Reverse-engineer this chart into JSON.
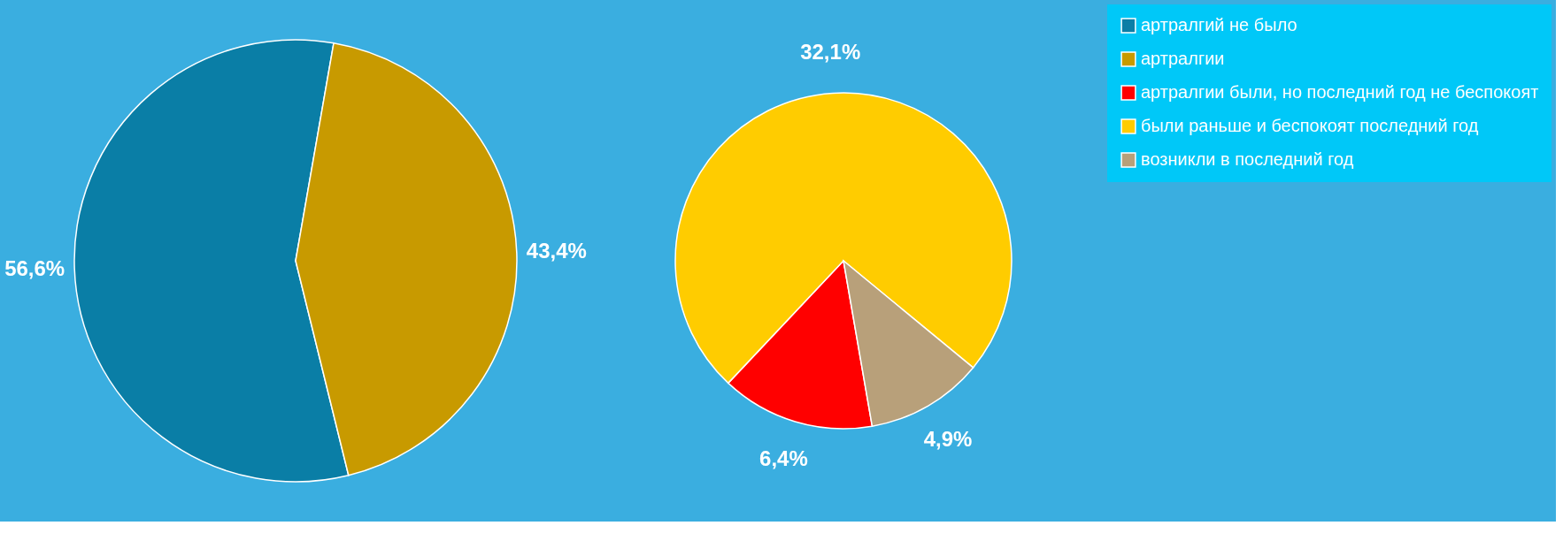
{
  "chart_data": [
    {
      "type": "pie",
      "categories": [
        "артралгий не было",
        "артралгии"
      ],
      "values": [
        56.6,
        43.4
      ],
      "colors": [
        "#0a7ea6",
        "#c89a00"
      ],
      "value_labels": [
        "56,6%",
        "43,4%"
      ],
      "legend": "right"
    },
    {
      "type": "pie",
      "categories": [
        "артралгии были, но последний год не беспокоят",
        "были раньше и беспокоят последний год",
        "возникли в последний год"
      ],
      "values": [
        6.4,
        32.1,
        4.9
      ],
      "colors": [
        "#ff0000",
        "#ffcc00",
        "#b8a07a"
      ],
      "value_labels": [
        "6,4%",
        "32,1%",
        "4,9%"
      ],
      "legend": "right"
    }
  ]
}
